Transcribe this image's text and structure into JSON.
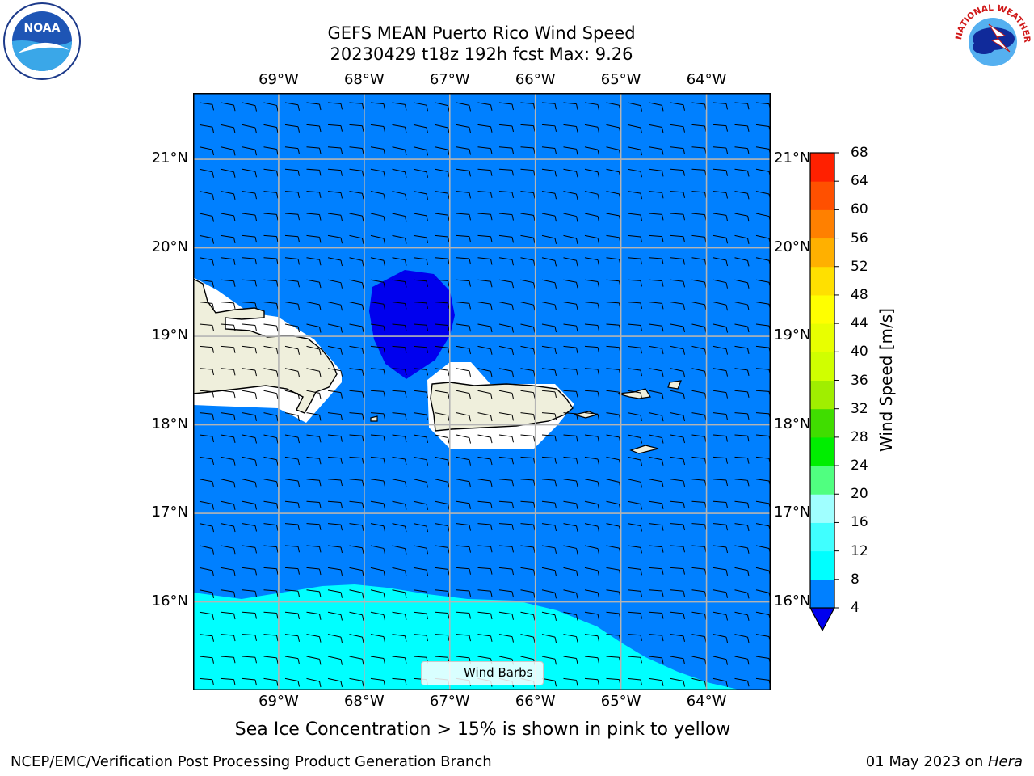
{
  "header": {
    "title": "GEFS MEAN Puerto Rico Wind Speed",
    "subtitle": "20230429 t18z 192h fcst   Max: 9.26"
  },
  "logos": {
    "left": "NOAA",
    "right": "NATIONAL WEATHER SERVICE"
  },
  "map": {
    "lon_labels": [
      "69°W",
      "68°W",
      "67°W",
      "66°W",
      "65°W",
      "64°W"
    ],
    "lat_labels": [
      "21°N",
      "20°N",
      "19°N",
      "18°N",
      "17°N",
      "16°N"
    ],
    "lon_range": [
      -70.0,
      -63.25
    ],
    "lat_range": [
      15.0,
      21.75
    ],
    "legend_label": "Wind Barbs"
  },
  "colorbar": {
    "label": "Wind Speed [m/s]",
    "ticks": [
      "68",
      "64",
      "60",
      "56",
      "52",
      "48",
      "44",
      "40",
      "36",
      "32",
      "28",
      "24",
      "20",
      "16",
      "12",
      "8",
      "4"
    ],
    "colors": [
      "#0000ee",
      "#0080ff",
      "#00ffff",
      "#40ffff",
      "#a0ffff",
      "#50ff80",
      "#00ee00",
      "#40dd00",
      "#a0ee00",
      "#d0ff00",
      "#e8ff00",
      "#ffff00",
      "#ffe000",
      "#ffb000",
      "#ff8000",
      "#ff5000",
      "#ff2000",
      "#ff0000"
    ]
  },
  "chart_data": {
    "type": "heatmap",
    "variable": "Wind Speed [m/s]",
    "max": 9.26,
    "levels": [
      4,
      8,
      12,
      16,
      20,
      24,
      28,
      32,
      36,
      40,
      44,
      48,
      52,
      56,
      60,
      64,
      68
    ],
    "regions": [
      {
        "range": "4-8",
        "color": "#0080ff",
        "area": "most of the map"
      },
      {
        "range": "<4",
        "color": "#0000ee",
        "area": "Mona Passage, near 19.3N 67.5W"
      },
      {
        "range": "8-12",
        "color": "#00ffff",
        "area": "south of about 16N"
      }
    ]
  },
  "footer": {
    "caption": "Sea Ice Concentration > 15% is shown in pink to yellow",
    "credit": "NCEP/EMC/Verification Post Processing Product Generation Branch",
    "date": "01 May 2023 on ",
    "host": "Hera"
  }
}
